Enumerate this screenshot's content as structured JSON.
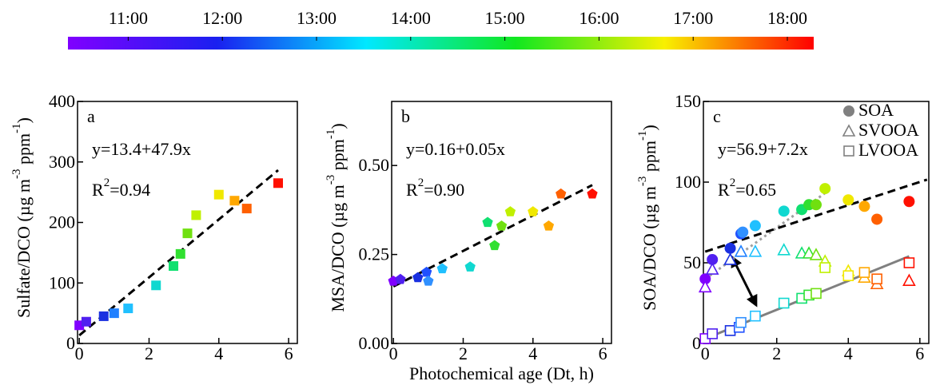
{
  "chart_data": [
    {
      "type": "colorbar",
      "stops": [
        "#8000ff",
        "#1a20f0",
        "#00e8ff",
        "#10e820",
        "#f8f000",
        "#ff0000"
      ],
      "xlim": [
        10.36,
        18.28
      ],
      "xticks": [
        {
          "value": 11,
          "label": "11:00"
        },
        {
          "value": 12,
          "label": "12:00"
        },
        {
          "value": 13,
          "label": "13:00"
        },
        {
          "value": 14,
          "label": "14:00"
        },
        {
          "value": 15,
          "label": "15:00"
        },
        {
          "value": 16,
          "label": "16:00"
        },
        {
          "value": 17,
          "label": "17:00"
        },
        {
          "value": 18,
          "label": "18:00"
        }
      ]
    },
    {
      "type": "scatter",
      "panel_label": "a",
      "ylabel": {
        "text": "Sulfate/DCO (µg m",
        "sup1": "-3",
        "mid": " ppm",
        "sup2": "-1",
        "end": ")"
      },
      "equation": "y=13.4+47.9x",
      "r2": {
        "base": "R",
        "sup": "2",
        "rest": "=0.94"
      },
      "fit": {
        "intercept": 13.4,
        "slope": 47.9,
        "x": [
          0,
          5.7
        ],
        "color": "#000000"
      },
      "xlim": [
        -0.05,
        6.25
      ],
      "xticks": [
        0,
        2,
        4,
        6
      ],
      "ylim": [
        0,
        400
      ],
      "yticks": [
        0,
        100,
        200,
        300,
        400
      ],
      "series": [
        {
          "marker": "square",
          "filled": true,
          "x": [
            0,
            0.2,
            0.7,
            1.0,
            1.4,
            2.2,
            2.7,
            2.9,
            3.1,
            3.35,
            4.0,
            4.45,
            4.8,
            5.7
          ],
          "values": [
            30,
            36,
            45,
            50,
            58,
            96,
            128,
            148,
            182,
            212,
            246,
            236,
            223,
            265
          ],
          "colors": [
            "#8000ff",
            "#5020f0",
            "#1a30e0",
            "#2080ff",
            "#20c0ff",
            "#10d8d0",
            "#10e070",
            "#30e030",
            "#70e010",
            "#c0f000",
            "#f0e800",
            "#ffa800",
            "#ff6000",
            "#ff1000"
          ]
        }
      ]
    },
    {
      "type": "scatter",
      "panel_label": "b",
      "ylabel": {
        "text": "MSA/DCO (µg m",
        "sup1": "-3",
        "mid": " ppm",
        "sup2": "-1",
        "end": ")"
      },
      "xlabel": "Photochemical age (Dt, h)",
      "equation": "y=0.16+0.05x",
      "r2": {
        "base": "R",
        "sup": "2",
        "rest": "=0.90"
      },
      "fit": {
        "intercept": 0.16,
        "slope": 0.05,
        "x": [
          0,
          5.7
        ],
        "color": "#000000"
      },
      "xlim": [
        -0.05,
        6.25
      ],
      "xticks": [
        0,
        2,
        4,
        6
      ],
      "ylim": [
        0,
        0.68
      ],
      "yticks": [
        {
          "value": 0,
          "label": "0.00"
        },
        {
          "value": 0.25,
          "label": "0.25"
        },
        {
          "value": 0.5,
          "label": "0.50"
        }
      ],
      "series": [
        {
          "marker": "pentagon",
          "filled": true,
          "x": [
            0,
            0.2,
            0.7,
            0.95,
            1.0,
            1.4,
            2.2,
            2.7,
            2.9,
            3.1,
            3.35,
            4.0,
            4.45,
            4.8,
            5.7
          ],
          "values": [
            0.175,
            0.18,
            0.185,
            0.2,
            0.175,
            0.21,
            0.215,
            0.34,
            0.275,
            0.33,
            0.37,
            0.37,
            0.33,
            0.42,
            0.42
          ],
          "colors": [
            "#8000ff",
            "#5020f0",
            "#1a30e0",
            "#2050ff",
            "#3090ff",
            "#20c0ff",
            "#10d8d0",
            "#10e070",
            "#30e030",
            "#70e010",
            "#c0f000",
            "#f0e800",
            "#ffa800",
            "#ff6000",
            "#ff1000"
          ]
        }
      ]
    },
    {
      "type": "scatter",
      "panel_label": "c",
      "ylabel": {
        "text": "SOA/DCO (µg m",
        "sup1": "-3",
        "mid": " ppm",
        "sup2": "-1",
        "end": ")"
      },
      "equation": "y=56.9+7.2x",
      "r2": {
        "base": "R",
        "sup": "2",
        "rest": "=0.65"
      },
      "fit": {
        "intercept": 56.9,
        "slope": 7.2,
        "x": [
          0,
          6.2
        ],
        "color": "#000000"
      },
      "lines": [
        {
          "x": [
            0,
            5.7
          ],
          "y": [
            3,
            54
          ],
          "color": "#808080",
          "dash": "solid"
        },
        {
          "x": [
            0,
            3.4
          ],
          "y": [
            40,
            94
          ],
          "color": "#a0a0a0",
          "dash": "dotted"
        }
      ],
      "xlim": [
        -0.05,
        6.25
      ],
      "xticks": [
        0,
        2,
        4,
        6
      ],
      "ylim": [
        0,
        150
      ],
      "yticks": [
        0,
        50,
        100,
        150
      ],
      "legend_color": "#808080",
      "series": [
        {
          "name": "SOA",
          "marker": "circle",
          "filled": true,
          "x": [
            0,
            0.2,
            0.7,
            1.0,
            1.05,
            1.4,
            2.2,
            2.7,
            2.9,
            3.1,
            3.35,
            4.0,
            4.45,
            4.8,
            5.7
          ],
          "values": [
            40,
            52,
            59,
            68,
            69,
            73,
            82,
            83,
            86,
            86,
            96,
            89,
            85,
            77,
            88
          ],
          "colors": [
            "#8000ff",
            "#5020f0",
            "#1a30e0",
            "#2050ff",
            "#3090ff",
            "#20c0ff",
            "#10d8d0",
            "#10e070",
            "#30e030",
            "#70e010",
            "#c0f000",
            "#f0e800",
            "#ffa800",
            "#ff6000",
            "#ff1000"
          ]
        },
        {
          "name": "SVOOA",
          "marker": "triangle",
          "filled": false,
          "x": [
            0,
            0.2,
            0.7,
            1.0,
            1.4,
            2.2,
            2.7,
            2.9,
            3.1,
            3.35,
            4.0,
            4.45,
            4.8,
            5.7
          ],
          "values": [
            35,
            46,
            52,
            57,
            57,
            58,
            56,
            56,
            55,
            51,
            45,
            41,
            37,
            39
          ],
          "colors": [
            "#8000ff",
            "#5020f0",
            "#1a30e0",
            "#2080ff",
            "#20c0ff",
            "#10d8d0",
            "#10e070",
            "#30e030",
            "#70e010",
            "#c0f000",
            "#f0e800",
            "#ffa800",
            "#ff6000",
            "#ff1000"
          ]
        },
        {
          "name": "LVOOA",
          "marker": "square",
          "filled": false,
          "x": [
            0,
            0.2,
            0.7,
            0.95,
            1.0,
            1.4,
            2.2,
            2.7,
            2.9,
            3.1,
            3.35,
            4.0,
            4.45,
            4.8,
            5.7
          ],
          "values": [
            3,
            6,
            8,
            10,
            13,
            17,
            25,
            28,
            30,
            31,
            47,
            42,
            44,
            40,
            50
          ],
          "colors": [
            "#8000ff",
            "#5020f0",
            "#1a30e0",
            "#2050ff",
            "#3090ff",
            "#20c0ff",
            "#10d8d0",
            "#10e070",
            "#30e030",
            "#70e010",
            "#c0f000",
            "#f0e800",
            "#ffa800",
            "#ff6000",
            "#ff1000"
          ]
        }
      ]
    }
  ]
}
